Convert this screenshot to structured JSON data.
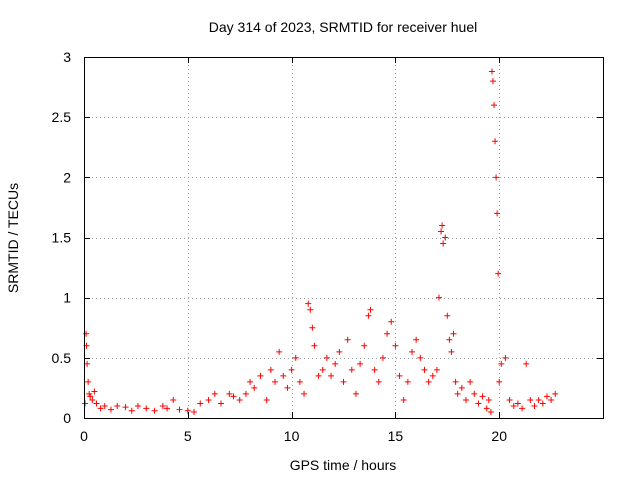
{
  "chart_data": {
    "type": "scatter",
    "title": "Day 314 of 2023, SRMTID for receiver huel",
    "xlabel": "GPS time / hours",
    "ylabel": "SRMTID / TECUs",
    "xlim": [
      0,
      25
    ],
    "ylim": [
      0,
      3
    ],
    "xticks": [
      0,
      5,
      10,
      15,
      20
    ],
    "yticks": [
      0,
      0.5,
      1,
      1.5,
      2,
      2.5,
      3
    ],
    "ytick_labels": [
      "0",
      "0.5",
      "1",
      "1.5",
      "2",
      "2.5",
      "3"
    ],
    "grid": true,
    "marker": "+",
    "color": "#ff0000",
    "series": [
      {
        "name": "SRMTID",
        "points": [
          [
            0.05,
            0.12
          ],
          [
            0.1,
            0.7
          ],
          [
            0.12,
            0.6
          ],
          [
            0.15,
            0.45
          ],
          [
            0.2,
            0.3
          ],
          [
            0.25,
            0.2
          ],
          [
            0.3,
            0.18
          ],
          [
            0.4,
            0.15
          ],
          [
            0.5,
            0.22
          ],
          [
            0.6,
            0.12
          ],
          [
            0.8,
            0.08
          ],
          [
            1.0,
            0.1
          ],
          [
            1.3,
            0.07
          ],
          [
            1.6,
            0.1
          ],
          [
            2.0,
            0.09
          ],
          [
            2.3,
            0.06
          ],
          [
            2.6,
            0.1
          ],
          [
            3.0,
            0.08
          ],
          [
            3.4,
            0.06
          ],
          [
            3.8,
            0.1
          ],
          [
            4.0,
            0.08
          ],
          [
            4.3,
            0.15
          ],
          [
            4.6,
            0.07
          ],
          [
            5.0,
            0.06
          ],
          [
            5.3,
            0.05
          ],
          [
            5.6,
            0.12
          ],
          [
            6.0,
            0.15
          ],
          [
            6.3,
            0.2
          ],
          [
            6.6,
            0.12
          ],
          [
            7.0,
            0.2
          ],
          [
            7.2,
            0.18
          ],
          [
            7.5,
            0.15
          ],
          [
            7.8,
            0.2
          ],
          [
            8.0,
            0.3
          ],
          [
            8.2,
            0.25
          ],
          [
            8.5,
            0.35
          ],
          [
            8.8,
            0.15
          ],
          [
            9.0,
            0.4
          ],
          [
            9.2,
            0.3
          ],
          [
            9.4,
            0.55
          ],
          [
            9.6,
            0.35
          ],
          [
            9.8,
            0.25
          ],
          [
            10.0,
            0.4
          ],
          [
            10.2,
            0.5
          ],
          [
            10.4,
            0.3
          ],
          [
            10.6,
            0.2
          ],
          [
            10.8,
            0.95
          ],
          [
            10.9,
            0.9
          ],
          [
            11.0,
            0.75
          ],
          [
            11.1,
            0.6
          ],
          [
            11.3,
            0.35
          ],
          [
            11.5,
            0.4
          ],
          [
            11.7,
            0.5
          ],
          [
            11.9,
            0.35
          ],
          [
            12.1,
            0.45
          ],
          [
            12.3,
            0.55
          ],
          [
            12.5,
            0.3
          ],
          [
            12.7,
            0.65
          ],
          [
            12.9,
            0.4
          ],
          [
            13.1,
            0.2
          ],
          [
            13.3,
            0.45
          ],
          [
            13.5,
            0.6
          ],
          [
            13.7,
            0.85
          ],
          [
            13.8,
            0.9
          ],
          [
            14.0,
            0.4
          ],
          [
            14.2,
            0.3
          ],
          [
            14.4,
            0.5
          ],
          [
            14.6,
            0.7
          ],
          [
            14.8,
            0.8
          ],
          [
            15.0,
            0.6
          ],
          [
            15.2,
            0.35
          ],
          [
            15.4,
            0.15
          ],
          [
            15.6,
            0.3
          ],
          [
            15.8,
            0.55
          ],
          [
            16.0,
            0.65
          ],
          [
            16.2,
            0.5
          ],
          [
            16.4,
            0.4
          ],
          [
            16.6,
            0.3
          ],
          [
            16.8,
            0.35
          ],
          [
            17.0,
            0.4
          ],
          [
            17.1,
            1.0
          ],
          [
            17.2,
            1.55
          ],
          [
            17.25,
            1.6
          ],
          [
            17.3,
            1.45
          ],
          [
            17.4,
            1.5
          ],
          [
            17.5,
            0.85
          ],
          [
            17.6,
            0.65
          ],
          [
            17.7,
            0.55
          ],
          [
            17.8,
            0.7
          ],
          [
            17.9,
            0.3
          ],
          [
            18.0,
            0.2
          ],
          [
            18.2,
            0.25
          ],
          [
            18.4,
            0.15
          ],
          [
            18.6,
            0.3
          ],
          [
            18.8,
            0.2
          ],
          [
            19.0,
            0.12
          ],
          [
            19.2,
            0.18
          ],
          [
            19.4,
            0.08
          ],
          [
            19.5,
            0.15
          ],
          [
            19.6,
            0.05
          ],
          [
            19.65,
            2.88
          ],
          [
            19.7,
            2.8
          ],
          [
            19.75,
            2.6
          ],
          [
            19.8,
            2.3
          ],
          [
            19.85,
            2.0
          ],
          [
            19.9,
            1.7
          ],
          [
            19.95,
            1.2
          ],
          [
            20.0,
            0.3
          ],
          [
            20.1,
            0.45
          ],
          [
            20.3,
            0.5
          ],
          [
            20.5,
            0.15
          ],
          [
            20.7,
            0.1
          ],
          [
            20.9,
            0.12
          ],
          [
            21.1,
            0.08
          ],
          [
            21.3,
            0.45
          ],
          [
            21.5,
            0.15
          ],
          [
            21.7,
            0.1
          ],
          [
            21.9,
            0.15
          ],
          [
            22.1,
            0.12
          ],
          [
            22.3,
            0.18
          ],
          [
            22.5,
            0.15
          ],
          [
            22.7,
            0.2
          ]
        ]
      }
    ]
  }
}
